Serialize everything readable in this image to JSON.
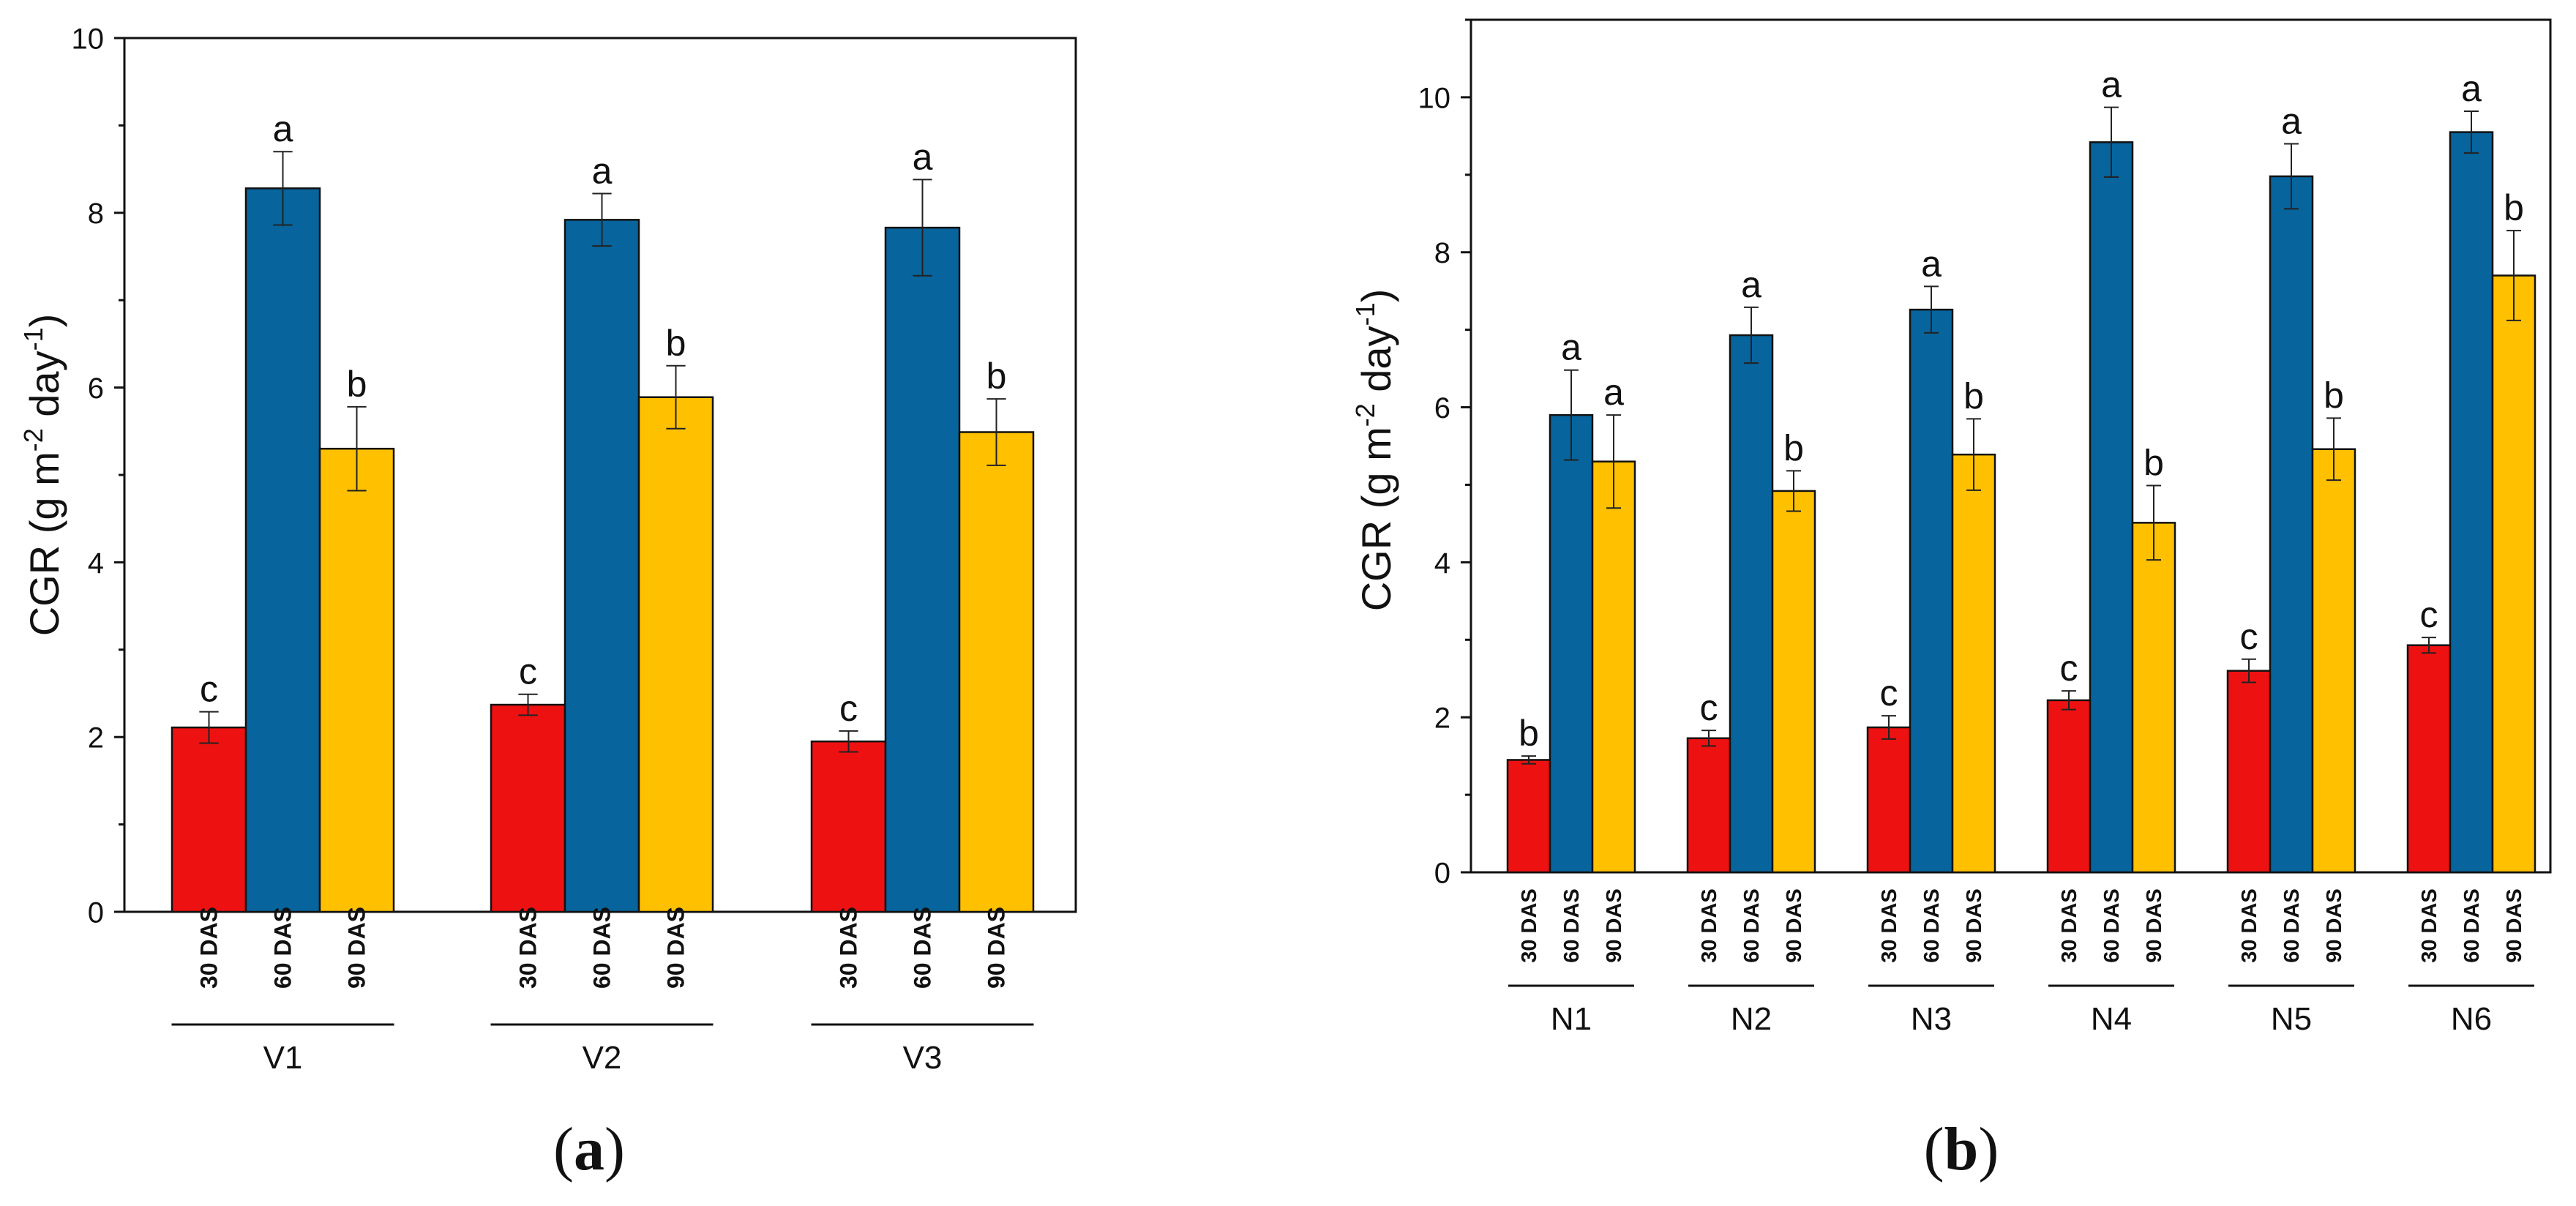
{
  "colors": {
    "30 DAS": "#ee1111",
    "60 DAS": "#07649c",
    "90 DAS": "#ffc000",
    "axis": "#111111"
  },
  "chart_data": [
    {
      "id": "a",
      "type": "bar",
      "panel_label": "a",
      "ylabel": "CGR (g m",
      "ylabel_sup1": "-2",
      "ylabel_mid": " day",
      "ylabel_sup2": "-1",
      "ylabel_end": ")",
      "ylim": [
        0,
        10
      ],
      "yticks": [
        "0",
        "2",
        "4",
        "6",
        "8",
        "10"
      ],
      "series_names": [
        "30 DAS",
        "60 DAS",
        "90 DAS"
      ],
      "groups": [
        {
          "name": "V1",
          "values": [
            2.11,
            8.28,
            5.3
          ],
          "errors": [
            0.18,
            0.42,
            0.48
          ],
          "letters": [
            "c",
            "a",
            "b"
          ]
        },
        {
          "name": "V2",
          "values": [
            2.37,
            7.92,
            5.89
          ],
          "errors": [
            0.12,
            0.3,
            0.36
          ],
          "letters": [
            "c",
            "a",
            "b"
          ]
        },
        {
          "name": "V3",
          "values": [
            1.95,
            7.83,
            5.49
          ],
          "errors": [
            0.12,
            0.55,
            0.38
          ],
          "letters": [
            "c",
            "a",
            "b"
          ]
        }
      ]
    },
    {
      "id": "b",
      "type": "bar",
      "panel_label": "b",
      "ylabel": "CGR (g m",
      "ylabel_sup1": "-2",
      "ylabel_mid": " day",
      "ylabel_sup2": "-1",
      "ylabel_end": ")",
      "ylim": [
        0,
        11
      ],
      "yticks": [
        "0",
        "2",
        "4",
        "6",
        "8",
        "10"
      ],
      "series_names": [
        "30 DAS",
        "60 DAS",
        "90 DAS"
      ],
      "groups": [
        {
          "name": "N1",
          "values": [
            1.45,
            5.9,
            5.3
          ],
          "errors": [
            0.05,
            0.58,
            0.6
          ],
          "letters": [
            "b",
            "a",
            "a"
          ]
        },
        {
          "name": "N2",
          "values": [
            1.73,
            6.93,
            4.92
          ],
          "errors": [
            0.1,
            0.36,
            0.26
          ],
          "letters": [
            "c",
            "a",
            "b"
          ]
        },
        {
          "name": "N3",
          "values": [
            1.87,
            7.26,
            5.39
          ],
          "errors": [
            0.15,
            0.3,
            0.46
          ],
          "letters": [
            "c",
            "a",
            "b"
          ]
        },
        {
          "name": "N4",
          "values": [
            2.22,
            9.42,
            4.51
          ],
          "errors": [
            0.12,
            0.45,
            0.48
          ],
          "letters": [
            "c",
            "a",
            "b"
          ]
        },
        {
          "name": "N5",
          "values": [
            2.6,
            8.98,
            5.46
          ],
          "errors": [
            0.15,
            0.42,
            0.4
          ],
          "letters": [
            "c",
            "a",
            "b"
          ]
        },
        {
          "name": "N6",
          "values": [
            2.93,
            9.55,
            7.7
          ],
          "errors": [
            0.1,
            0.27,
            0.58
          ],
          "letters": [
            "c",
            "a",
            "b"
          ]
        }
      ]
    }
  ]
}
